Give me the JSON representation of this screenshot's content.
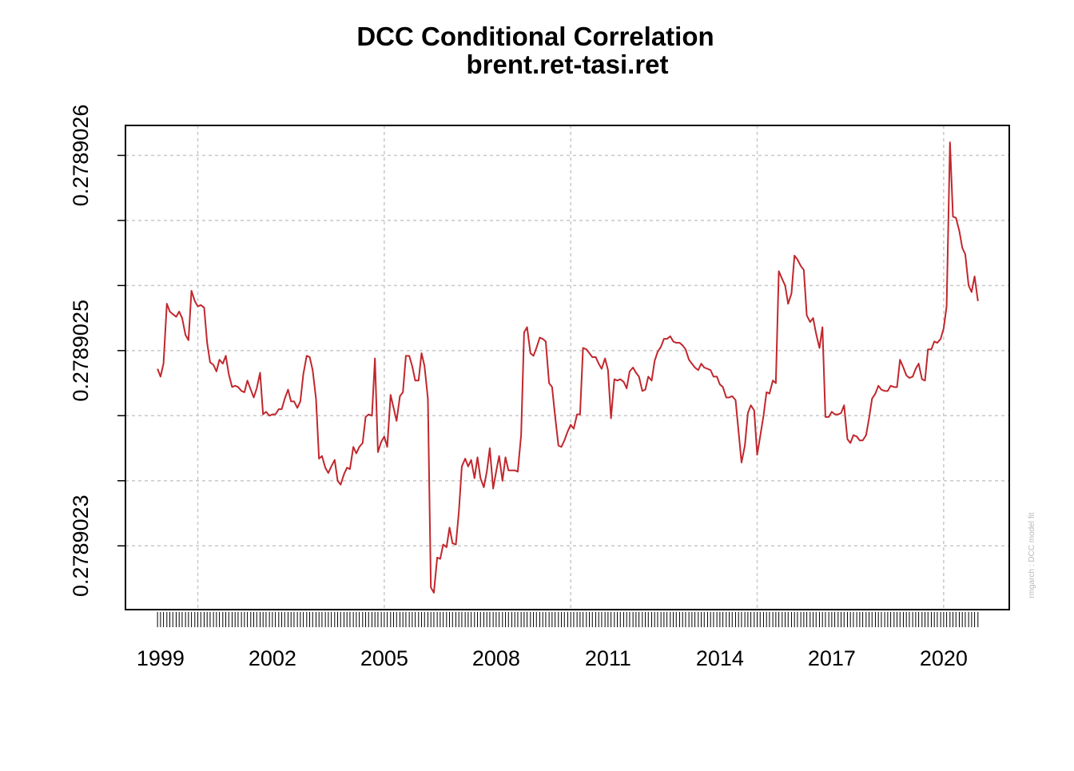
{
  "chart_data": {
    "type": "line",
    "title": "DCC Conditional Correlation",
    "subtitle": "brent.ret-tasi.ret",
    "side_note": "rmgarch  :  DCC model fit",
    "color": "#c1272d",
    "grid": true,
    "xlim": [
      1998.06,
      2021.76
    ],
    "xticks": [
      1999,
      2002,
      2005,
      2008,
      2011,
      2014,
      2017,
      2020
    ],
    "xgrid": [
      2000,
      2005,
      2010,
      2015,
      2020
    ],
    "ylim": [
      0.278902251,
      0.278902623
    ],
    "yticks": [
      0.2789023,
      {
        "value": 0.27890245,
        "label": "0.2789025"
      },
      0.2789026
    ],
    "yminor": [
      0.27890235,
      0.2789024,
      0.2789025,
      0.27890255
    ],
    "x": [
      1998.92,
      1999,
      1999.08,
      1999.17,
      1999.25,
      1999.33,
      1999.42,
      1999.5,
      1999.58,
      1999.67,
      1999.75,
      1999.83,
      1999.92,
      2000,
      2000.08,
      2000.17,
      2000.25,
      2000.33,
      2000.42,
      2000.5,
      2000.58,
      2000.67,
      2000.75,
      2000.83,
      2000.92,
      2001,
      2001.08,
      2001.17,
      2001.25,
      2001.33,
      2001.42,
      2001.5,
      2001.58,
      2001.67,
      2001.75,
      2001.83,
      2001.92,
      2002,
      2002.08,
      2002.17,
      2002.25,
      2002.33,
      2002.42,
      2002.5,
      2002.58,
      2002.67,
      2002.75,
      2002.83,
      2002.92,
      2003,
      2003.08,
      2003.17,
      2003.25,
      2003.33,
      2003.42,
      2003.5,
      2003.58,
      2003.67,
      2003.75,
      2003.83,
      2003.92,
      2004,
      2004.08,
      2004.17,
      2004.25,
      2004.33,
      2004.42,
      2004.5,
      2004.58,
      2004.67,
      2004.75,
      2004.83,
      2004.92,
      2005,
      2005.08,
      2005.17,
      2005.25,
      2005.33,
      2005.42,
      2005.5,
      2005.58,
      2005.67,
      2005.75,
      2005.83,
      2005.92,
      2006,
      2006.08,
      2006.17,
      2006.25,
      2006.33,
      2006.42,
      2006.5,
      2006.58,
      2006.67,
      2006.75,
      2006.83,
      2006.92,
      2007,
      2007.08,
      2007.17,
      2007.25,
      2007.33,
      2007.42,
      2007.5,
      2007.58,
      2007.67,
      2007.75,
      2007.83,
      2007.92,
      2008,
      2008.08,
      2008.17,
      2008.25,
      2008.33,
      2008.42,
      2008.5,
      2008.58,
      2008.67,
      2008.75,
      2008.83,
      2008.92,
      2009,
      2009.08,
      2009.17,
      2009.25,
      2009.33,
      2009.42,
      2009.5,
      2009.58,
      2009.67,
      2009.75,
      2009.83,
      2009.92,
      2010,
      2010.08,
      2010.17,
      2010.25,
      2010.33,
      2010.42,
      2010.5,
      2010.58,
      2010.67,
      2010.75,
      2010.83,
      2010.92,
      2011,
      2011.08,
      2011.17,
      2011.25,
      2011.33,
      2011.42,
      2011.5,
      2011.58,
      2011.67,
      2011.75,
      2011.83,
      2011.92,
      2012,
      2012.08,
      2012.17,
      2012.25,
      2012.33,
      2012.42,
      2012.5,
      2012.58,
      2012.67,
      2012.75,
      2012.83,
      2012.92,
      2013,
      2013.08,
      2013.17,
      2013.25,
      2013.33,
      2013.42,
      2013.5,
      2013.58,
      2013.67,
      2013.75,
      2013.83,
      2013.92,
      2014,
      2014.08,
      2014.17,
      2014.25,
      2014.33,
      2014.42,
      2014.5,
      2014.58,
      2014.67,
      2014.75,
      2014.83,
      2014.92,
      2015,
      2015.08,
      2015.17,
      2015.25,
      2015.33,
      2015.42,
      2015.5,
      2015.58,
      2015.67,
      2015.75,
      2015.83,
      2015.92,
      2016,
      2016.08,
      2016.17,
      2016.25,
      2016.33,
      2016.42,
      2016.5,
      2016.58,
      2016.67,
      2016.75,
      2016.83,
      2016.92,
      2017,
      2017.08,
      2017.17,
      2017.25,
      2017.33,
      2017.42,
      2017.5,
      2017.58,
      2017.67,
      2017.75,
      2017.83,
      2017.92,
      2018,
      2018.08,
      2018.17,
      2018.25,
      2018.33,
      2018.42,
      2018.5,
      2018.58,
      2018.67,
      2018.75,
      2018.83,
      2018.92,
      2019,
      2019.08,
      2019.17,
      2019.25,
      2019.33,
      2019.42,
      2019.5,
      2019.58,
      2019.67,
      2019.75,
      2019.83,
      2019.92,
      2020,
      2020.08,
      2020.17,
      2020.25,
      2020.33,
      2020.42,
      2020.5,
      2020.58,
      2020.67,
      2020.75,
      2020.83,
      2020.92
    ],
    "values": [
      0.278902436,
      0.27890243,
      0.27890244,
      0.278902486,
      0.27890248,
      0.278902478,
      0.278902476,
      0.27890248,
      0.278902475,
      0.278902462,
      0.278902458,
      0.278902496,
      0.278902488,
      0.278902484,
      0.278902485,
      0.278902483,
      0.278902456,
      0.278902441,
      0.278902439,
      0.278902434,
      0.278902443,
      0.27890244,
      0.278902446,
      0.278902432,
      0.278902422,
      0.278902423,
      0.278902422,
      0.278902419,
      0.278902418,
      0.278902427,
      0.27890242,
      0.278902414,
      0.278902421,
      0.278902433,
      0.278902401,
      0.278902403,
      0.2789024,
      0.278902401,
      0.278902401,
      0.278902405,
      0.278902405,
      0.278902413,
      0.27890242,
      0.278902411,
      0.278902411,
      0.278902406,
      0.278902411,
      0.278902432,
      0.278902446,
      0.278902445,
      0.278902435,
      0.278902413,
      0.278902367,
      0.278902369,
      0.27890236,
      0.278902356,
      0.278902361,
      0.278902366,
      0.27890235,
      0.278902347,
      0.278902355,
      0.27890236,
      0.278902359,
      0.278902376,
      0.278902371,
      0.278902376,
      0.278902379,
      0.278902399,
      0.278902401,
      0.2789024,
      0.278902444,
      0.278902372,
      0.27890238,
      0.278902384,
      0.278902376,
      0.278902416,
      0.278902406,
      0.278902396,
      0.278902415,
      0.278902418,
      0.278902446,
      0.278902446,
      0.278902438,
      0.278902427,
      0.278902427,
      0.278902448,
      0.278902438,
      0.278902413,
      0.278902268,
      0.278902264,
      0.278902291,
      0.27890229,
      0.278902301,
      0.278902299,
      0.278902314,
      0.278902302,
      0.278902301,
      0.278902326,
      0.278902361,
      0.278902367,
      0.278902361,
      0.278902366,
      0.278902352,
      0.278902368,
      0.278902352,
      0.278902345,
      0.278902357,
      0.278902375,
      0.278902344,
      0.278902357,
      0.278902369,
      0.27890235,
      0.278902368,
      0.278902358,
      0.278902358,
      0.278902358,
      0.278902357,
      0.278902385,
      0.278902464,
      0.278902468,
      0.278902448,
      0.278902446,
      0.278902452,
      0.27890246,
      0.278902459,
      0.278902457,
      0.278902425,
      0.278902422,
      0.2789024,
      0.278902377,
      0.278902376,
      0.278902381,
      0.278902388,
      0.278902393,
      0.27890239,
      0.278902401,
      0.278902401,
      0.278902452,
      0.278902451,
      0.278902448,
      0.278902445,
      0.278902445,
      0.27890244,
      0.278902436,
      0.278902444,
      0.278902435,
      0.278902398,
      0.278902428,
      0.278902427,
      0.278902428,
      0.278902426,
      0.278902421,
      0.278902434,
      0.278902437,
      0.278902433,
      0.27890243,
      0.278902419,
      0.27890242,
      0.27890243,
      0.278902427,
      0.278902442,
      0.278902449,
      0.278902453,
      0.278902459,
      0.278902459,
      0.278902461,
      0.278902457,
      0.278902456,
      0.278902456,
      0.278902454,
      0.278902451,
      0.278902443,
      0.27890244,
      0.278902437,
      0.278902435,
      0.27890244,
      0.278902437,
      0.278902436,
      0.278902435,
      0.27890243,
      0.27890243,
      0.278902424,
      0.278902422,
      0.278902414,
      0.278902414,
      0.278902415,
      0.278902412,
      0.278902388,
      0.278902364,
      0.278902377,
      0.278902402,
      0.278902408,
      0.278902404,
      0.27890237,
      0.278902384,
      0.2789024,
      0.278902418,
      0.278902417,
      0.278902427,
      0.278902425,
      0.278902511,
      0.278902505,
      0.2789025,
      0.278902486,
      0.278902494,
      0.278902523,
      0.27890252,
      0.278902515,
      0.278902512,
      0.278902477,
      0.278902472,
      0.278902475,
      0.278902463,
      0.278902452,
      0.278902468,
      0.278902399,
      0.278902399,
      0.278902403,
      0.278902401,
      0.278902401,
      0.278902402,
      0.278902408,
      0.278902382,
      0.278902379,
      0.278902385,
      0.278902384,
      0.278902381,
      0.278902381,
      0.278902385,
      0.278902398,
      0.278902413,
      0.278902417,
      0.278902423,
      0.27890242,
      0.278902419,
      0.278902419,
      0.278902423,
      0.278902422,
      0.278902422,
      0.278902443,
      0.278902437,
      0.278902431,
      0.278902429,
      0.27890243,
      0.278902436,
      0.27890244,
      0.278902428,
      0.278902427,
      0.278902451,
      0.278902451,
      0.278902457,
      0.278902456,
      0.278902459,
      0.278902467,
      0.278902484,
      0.27890261,
      0.278902553,
      0.278902552,
      0.278902542,
      0.278902529,
      0.278902524,
      0.2789025,
      0.278902495,
      0.278902507,
      0.278902488
    ]
  }
}
